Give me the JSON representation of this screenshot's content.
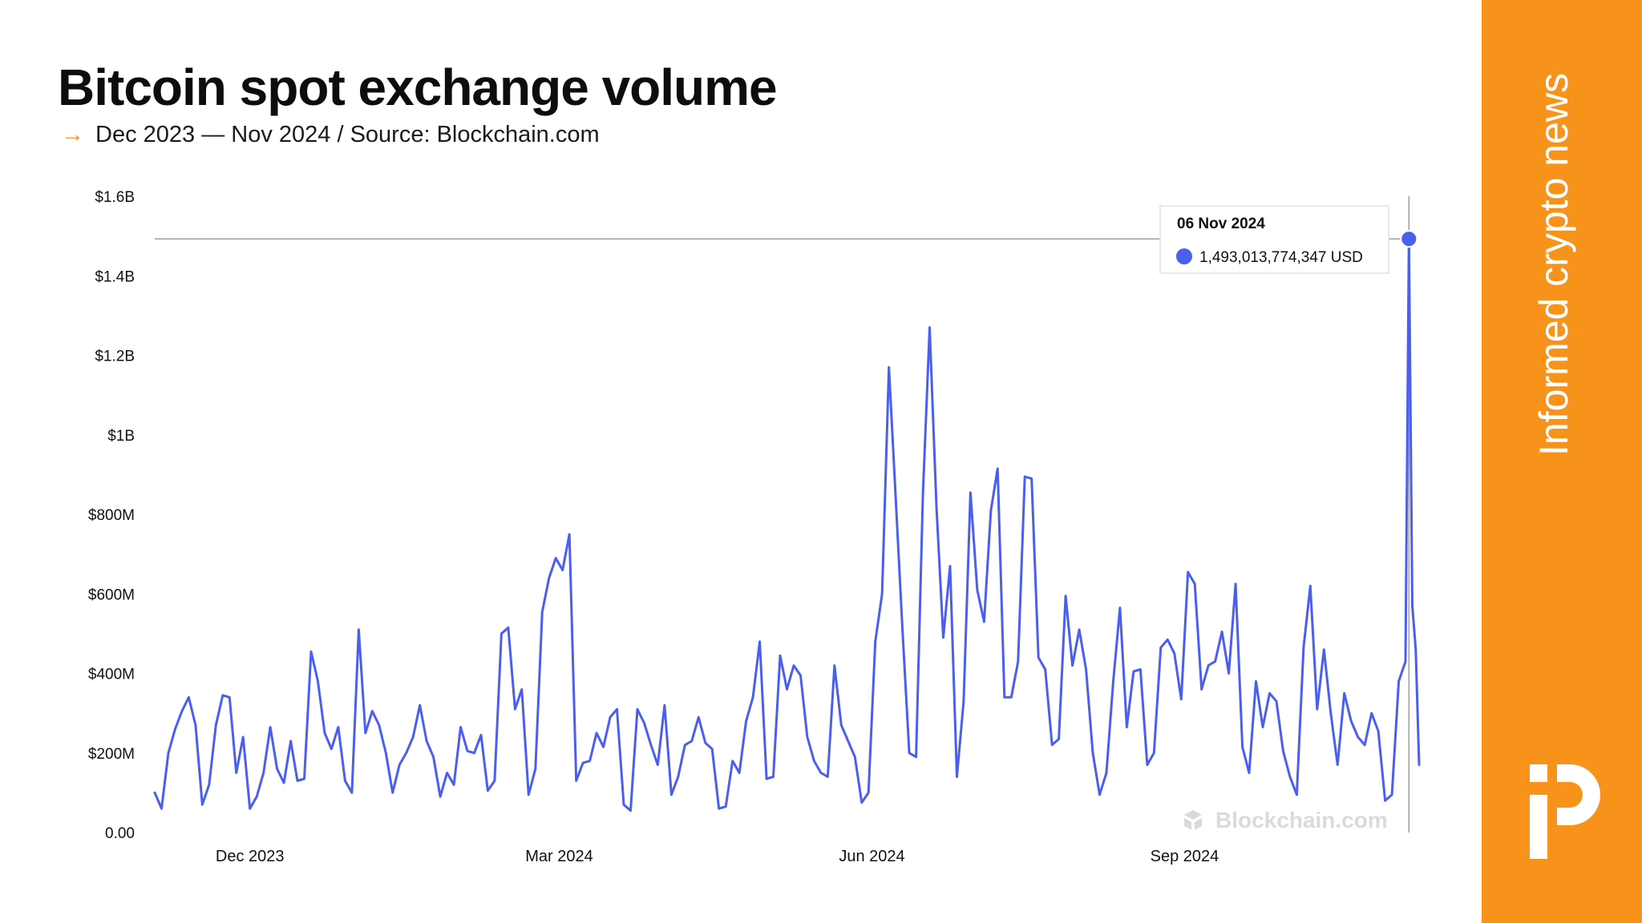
{
  "header": {
    "title": "Bitcoin spot exchange volume",
    "subtitle_arrow": "→",
    "subtitle": "Dec 2023 — Nov 2024 / Source: Blockchain.com"
  },
  "sidebar": {
    "tagline": "Informed crypto news",
    "logo_icon": "publisher-logo-icon",
    "background_color": "#f7931a"
  },
  "watermark": "Blockchain.com",
  "tooltip": {
    "date": "06 Nov 2024",
    "value_label": "1,493,013,774,347 USD",
    "value": 1493013774347
  },
  "chart_data": {
    "type": "line",
    "title": "Bitcoin spot exchange volume",
    "xlabel": "",
    "ylabel": "",
    "x_start": "2023-11-03",
    "x_end": "2024-11-09",
    "ylim": [
      0,
      1600000000
    ],
    "yticks": [
      {
        "value": 0,
        "label": "0.00"
      },
      {
        "value": 200000000,
        "label": "$200M"
      },
      {
        "value": 400000000,
        "label": "$400M"
      },
      {
        "value": 600000000,
        "label": "$600M"
      },
      {
        "value": 800000000,
        "label": "$800M"
      },
      {
        "value": 1000000000,
        "label": "$1B"
      },
      {
        "value": 1200000000,
        "label": "$1.2B"
      },
      {
        "value": 1400000000,
        "label": "$1.4B"
      },
      {
        "value": 1600000000,
        "label": "$1.6B"
      }
    ],
    "xticks": [
      {
        "date": "2023-12-01",
        "label": "Dec 2023"
      },
      {
        "date": "2024-03-01",
        "label": "Mar 2024"
      },
      {
        "date": "2024-06-01",
        "label": "Jun 2024"
      },
      {
        "date": "2024-09-01",
        "label": "Sep 2024"
      }
    ],
    "grid": false,
    "line_color": "#4a5ef0",
    "highlight": {
      "date": "2024-11-06",
      "value": 1493013774347
    },
    "series": [
      {
        "name": "",
        "points": [
          [
            "2023-11-03",
            100
          ],
          [
            "2023-11-05",
            60
          ],
          [
            "2023-11-07",
            200
          ],
          [
            "2023-11-09",
            260
          ],
          [
            "2023-11-11",
            305
          ],
          [
            "2023-11-13",
            340
          ],
          [
            "2023-11-15",
            270
          ],
          [
            "2023-11-17",
            70
          ],
          [
            "2023-11-19",
            120
          ],
          [
            "2023-11-21",
            270
          ],
          [
            "2023-11-23",
            345
          ],
          [
            "2023-11-25",
            340
          ],
          [
            "2023-11-27",
            150
          ],
          [
            "2023-11-29",
            240
          ],
          [
            "2023-12-01",
            60
          ],
          [
            "2023-12-03",
            90
          ],
          [
            "2023-12-05",
            150
          ],
          [
            "2023-12-07",
            265
          ],
          [
            "2023-12-09",
            160
          ],
          [
            "2023-12-11",
            125
          ],
          [
            "2023-12-13",
            230
          ],
          [
            "2023-12-15",
            130
          ],
          [
            "2023-12-17",
            135
          ],
          [
            "2023-12-19",
            455
          ],
          [
            "2023-12-21",
            380
          ],
          [
            "2023-12-23",
            250
          ],
          [
            "2023-12-25",
            210
          ],
          [
            "2023-12-27",
            265
          ],
          [
            "2023-12-29",
            130
          ],
          [
            "2023-12-31",
            100
          ],
          [
            "2024-01-02",
            510
          ],
          [
            "2024-01-04",
            250
          ],
          [
            "2024-01-06",
            305
          ],
          [
            "2024-01-08",
            270
          ],
          [
            "2024-01-10",
            200
          ],
          [
            "2024-01-12",
            100
          ],
          [
            "2024-01-14",
            170
          ],
          [
            "2024-01-16",
            200
          ],
          [
            "2024-01-18",
            240
          ],
          [
            "2024-01-20",
            320
          ],
          [
            "2024-01-22",
            230
          ],
          [
            "2024-01-24",
            190
          ],
          [
            "2024-01-26",
            90
          ],
          [
            "2024-01-28",
            150
          ],
          [
            "2024-01-30",
            120
          ],
          [
            "2024-02-01",
            265
          ],
          [
            "2024-02-03",
            205
          ],
          [
            "2024-02-05",
            200
          ],
          [
            "2024-02-07",
            245
          ],
          [
            "2024-02-09",
            105
          ],
          [
            "2024-02-11",
            130
          ],
          [
            "2024-02-13",
            500
          ],
          [
            "2024-02-15",
            515
          ],
          [
            "2024-02-17",
            310
          ],
          [
            "2024-02-19",
            360
          ],
          [
            "2024-02-21",
            95
          ],
          [
            "2024-02-23",
            160
          ],
          [
            "2024-02-25",
            555
          ],
          [
            "2024-02-27",
            640
          ],
          [
            "2024-02-29",
            690
          ],
          [
            "2024-03-02",
            660
          ],
          [
            "2024-03-04",
            750
          ],
          [
            "2024-03-06",
            130
          ],
          [
            "2024-03-08",
            175
          ],
          [
            "2024-03-10",
            180
          ],
          [
            "2024-03-12",
            250
          ],
          [
            "2024-03-14",
            215
          ],
          [
            "2024-03-16",
            290
          ],
          [
            "2024-03-18",
            310
          ],
          [
            "2024-03-20",
            70
          ],
          [
            "2024-03-22",
            55
          ],
          [
            "2024-03-24",
            310
          ],
          [
            "2024-03-26",
            275
          ],
          [
            "2024-03-28",
            220
          ],
          [
            "2024-03-30",
            170
          ],
          [
            "2024-04-01",
            320
          ],
          [
            "2024-04-03",
            95
          ],
          [
            "2024-04-05",
            140
          ],
          [
            "2024-04-07",
            220
          ],
          [
            "2024-04-09",
            230
          ],
          [
            "2024-04-11",
            290
          ],
          [
            "2024-04-13",
            225
          ],
          [
            "2024-04-15",
            210
          ],
          [
            "2024-04-17",
            60
          ],
          [
            "2024-04-19",
            65
          ],
          [
            "2024-04-21",
            180
          ],
          [
            "2024-04-23",
            150
          ],
          [
            "2024-04-25",
            280
          ],
          [
            "2024-04-27",
            340
          ],
          [
            "2024-04-29",
            480
          ],
          [
            "2024-05-01",
            135
          ],
          [
            "2024-05-03",
            140
          ],
          [
            "2024-05-05",
            445
          ],
          [
            "2024-05-07",
            360
          ],
          [
            "2024-05-09",
            420
          ],
          [
            "2024-05-11",
            395
          ],
          [
            "2024-05-13",
            240
          ],
          [
            "2024-05-15",
            180
          ],
          [
            "2024-05-17",
            150
          ],
          [
            "2024-05-19",
            140
          ],
          [
            "2024-05-21",
            420
          ],
          [
            "2024-05-23",
            270
          ],
          [
            "2024-05-25",
            230
          ],
          [
            "2024-05-27",
            190
          ],
          [
            "2024-05-29",
            75
          ],
          [
            "2024-05-31",
            100
          ],
          [
            "2024-06-02",
            480
          ],
          [
            "2024-06-04",
            600
          ],
          [
            "2024-06-06",
            1170
          ],
          [
            "2024-06-08",
            840
          ],
          [
            "2024-06-10",
            510
          ],
          [
            "2024-06-12",
            200
          ],
          [
            "2024-06-14",
            190
          ],
          [
            "2024-06-16",
            850
          ],
          [
            "2024-06-18",
            1270
          ],
          [
            "2024-06-20",
            820
          ],
          [
            "2024-06-22",
            490
          ],
          [
            "2024-06-24",
            670
          ],
          [
            "2024-06-26",
            140
          ],
          [
            "2024-06-28",
            330
          ],
          [
            "2024-06-30",
            855
          ],
          [
            "2024-07-02",
            610
          ],
          [
            "2024-07-04",
            530
          ],
          [
            "2024-07-06",
            810
          ],
          [
            "2024-07-08",
            915
          ],
          [
            "2024-07-10",
            340
          ],
          [
            "2024-07-12",
            340
          ],
          [
            "2024-07-14",
            430
          ],
          [
            "2024-07-16",
            895
          ],
          [
            "2024-07-18",
            890
          ],
          [
            "2024-07-20",
            440
          ],
          [
            "2024-07-22",
            410
          ],
          [
            "2024-07-24",
            220
          ],
          [
            "2024-07-26",
            235
          ],
          [
            "2024-07-28",
            595
          ],
          [
            "2024-07-30",
            420
          ],
          [
            "2024-08-01",
            510
          ],
          [
            "2024-08-03",
            410
          ],
          [
            "2024-08-05",
            200
          ],
          [
            "2024-08-07",
            95
          ],
          [
            "2024-08-09",
            150
          ],
          [
            "2024-08-11",
            380
          ],
          [
            "2024-08-13",
            565
          ],
          [
            "2024-08-15",
            265
          ],
          [
            "2024-08-17",
            405
          ],
          [
            "2024-08-19",
            410
          ],
          [
            "2024-08-21",
            170
          ],
          [
            "2024-08-23",
            200
          ],
          [
            "2024-08-25",
            465
          ],
          [
            "2024-08-27",
            485
          ],
          [
            "2024-08-29",
            450
          ],
          [
            "2024-08-31",
            335
          ],
          [
            "2024-09-02",
            655
          ],
          [
            "2024-09-04",
            625
          ],
          [
            "2024-09-06",
            360
          ],
          [
            "2024-09-08",
            420
          ],
          [
            "2024-09-10",
            430
          ],
          [
            "2024-09-12",
            505
          ],
          [
            "2024-09-14",
            400
          ],
          [
            "2024-09-16",
            625
          ],
          [
            "2024-09-18",
            215
          ],
          [
            "2024-09-20",
            150
          ],
          [
            "2024-09-22",
            380
          ],
          [
            "2024-09-24",
            265
          ],
          [
            "2024-09-26",
            350
          ],
          [
            "2024-09-28",
            330
          ],
          [
            "2024-09-30",
            205
          ],
          [
            "2024-10-02",
            140
          ],
          [
            "2024-10-04",
            95
          ],
          [
            "2024-10-06",
            465
          ],
          [
            "2024-10-08",
            620
          ],
          [
            "2024-10-10",
            310
          ],
          [
            "2024-10-12",
            460
          ],
          [
            "2024-10-14",
            300
          ],
          [
            "2024-10-16",
            170
          ],
          [
            "2024-10-18",
            350
          ],
          [
            "2024-10-20",
            280
          ],
          [
            "2024-10-22",
            240
          ],
          [
            "2024-10-24",
            220
          ],
          [
            "2024-10-26",
            300
          ],
          [
            "2024-10-28",
            255
          ],
          [
            "2024-10-30",
            80
          ]
        ]
      }
    ]
  }
}
